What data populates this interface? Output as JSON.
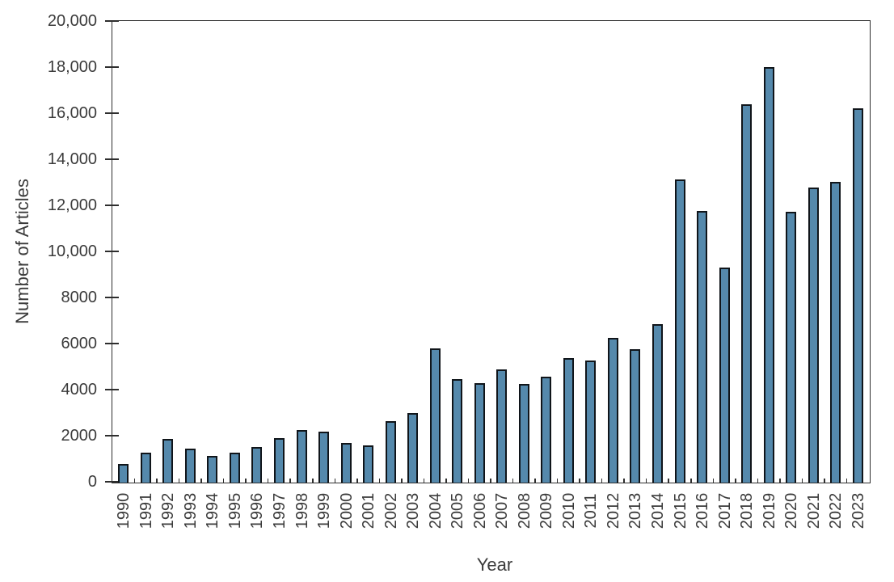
{
  "chart_data": {
    "type": "bar",
    "title": "",
    "xlabel": "Year",
    "ylabel": "Number of Articles",
    "categories": [
      "1990",
      "1991",
      "1992",
      "1993",
      "1994",
      "1995",
      "1996",
      "1997",
      "1998",
      "1999",
      "2000",
      "2001",
      "2002",
      "2003",
      "2004",
      "2005",
      "2006",
      "2007",
      "2008",
      "2009",
      "2010",
      "2011",
      "2012",
      "2013",
      "2014",
      "2015",
      "2016",
      "2017",
      "2018",
      "2019",
      "2020",
      "2021",
      "2022",
      "2023"
    ],
    "values": [
      800,
      1300,
      1900,
      1470,
      1170,
      1300,
      1550,
      1930,
      2280,
      2210,
      1720,
      1630,
      2650,
      3010,
      5810,
      4490,
      4310,
      4930,
      4280,
      4600,
      5420,
      5300,
      6290,
      5790,
      6890,
      13150,
      11800,
      9350,
      16420,
      18020,
      11760,
      12810,
      13060,
      16240
    ],
    "ylim": [
      0,
      20000
    ],
    "ytick_step": 2000,
    "ytick_labels": [
      "0",
      "2000",
      "4000",
      "6000",
      "8000",
      "10,000",
      "12,000",
      "14,000",
      "16,000",
      "18,000",
      "20,000"
    ],
    "grid": "off",
    "legend": "none",
    "colors": {
      "bar_fill": "#5589ac",
      "bar_border": "#10151a",
      "axis": "#2e2e2e",
      "text": "#3b3b3b"
    }
  }
}
